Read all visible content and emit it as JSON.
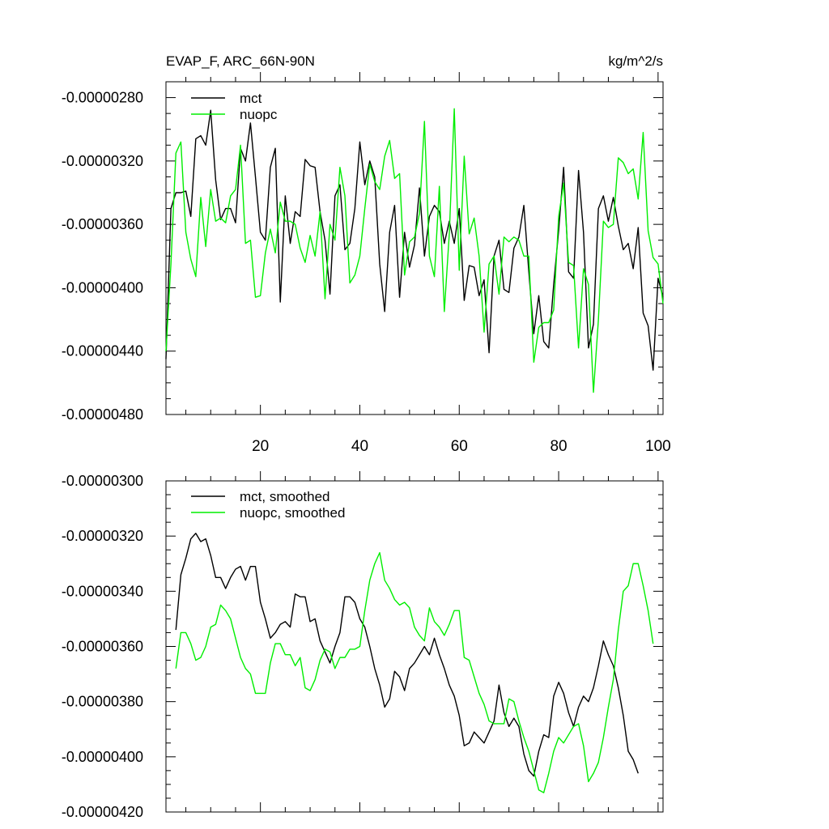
{
  "chart_data": [
    {
      "type": "line",
      "title": "EVAP_F, ARC_66N-90N",
      "units": "kg/m^2/s",
      "xlabel": "",
      "ylabel": "",
      "xlim": [
        1,
        101
      ],
      "ylim": [
        -4.8e-06,
        -2.7e-06
      ],
      "x_ticks": [
        20,
        40,
        60,
        80,
        100
      ],
      "x_tick_labels": [
        "20",
        "40",
        "60",
        "80",
        "100"
      ],
      "y_ticks": [
        -2.8e-06,
        -3.2e-06,
        -3.6e-06,
        -4e-06,
        -4.4e-06,
        -4.8e-06
      ],
      "y_tick_labels": [
        "-0.00000280",
        "-0.00000320",
        "-0.00000360",
        "-0.00000400",
        "-0.00000440",
        "-0.00000480"
      ],
      "legend_position": "top-left",
      "grid": false,
      "series": [
        {
          "name": "mct",
          "color": "#000000",
          "x_start": 1,
          "values": [
            -4.45e-06,
            -3.5e-06,
            -3.4e-06,
            -3.4e-06,
            -3.39e-06,
            -3.55e-06,
            -3.06e-06,
            -3.04e-06,
            -3.1e-06,
            -2.88e-06,
            -3.32e-06,
            -3.57e-06,
            -3.5e-06,
            -3.5e-06,
            -3.59e-06,
            -3.12e-06,
            -3.2e-06,
            -2.96e-06,
            -3.3e-06,
            -3.65e-06,
            -3.7e-06,
            -3.24e-06,
            -3.12e-06,
            -4.09e-06,
            -3.42e-06,
            -3.72e-06,
            -3.52e-06,
            -3.55e-06,
            -3.19e-06,
            -3.23e-06,
            -3.24e-06,
            -3.52e-06,
            -3.7e-06,
            -4.04e-06,
            -3.42e-06,
            -3.35e-06,
            -3.76e-06,
            -3.72e-06,
            -3.5e-06,
            -3.08e-06,
            -3.35e-06,
            -3.2e-06,
            -3.3e-06,
            -3.85e-06,
            -4.15e-06,
            -3.65e-06,
            -3.48e-06,
            -4.06e-06,
            -3.65e-06,
            -3.87e-06,
            -3.73e-06,
            -3.37e-06,
            -3.8e-06,
            -3.55e-06,
            -3.48e-06,
            -3.52e-06,
            -3.72e-06,
            -3.58e-06,
            -3.72e-06,
            -3.5e-06,
            -4.08e-06,
            -3.86e-06,
            -3.87e-06,
            -4.05e-06,
            -3.95e-06,
            -4.41e-06,
            -3.8e-06,
            -3.7e-06,
            -4.01e-06,
            -4.03e-06,
            -3.75e-06,
            -3.68e-06,
            -3.48e-06,
            -3.9e-06,
            -4.29e-06,
            -4.05e-06,
            -4.34e-06,
            -4.38e-06,
            -3.98e-06,
            -3.64e-06,
            -3.24e-06,
            -3.9e-06,
            -3.94e-06,
            -3.26e-06,
            -3.65e-06,
            -4.38e-06,
            -4.23e-06,
            -3.5e-06,
            -3.42e-06,
            -3.58e-06,
            -3.43e-06,
            -3.61e-06,
            -3.76e-06,
            -3.72e-06,
            -3.88e-06,
            -3.62e-06,
            -4.16e-06,
            -4.24e-06,
            -4.52e-06,
            -3.94e-06,
            -4.06e-06
          ]
        },
        {
          "name": "nuopc",
          "color": "#00ee00",
          "x_start": 1,
          "values": [
            -4.4e-06,
            -3.85e-06,
            -3.15e-06,
            -3.08e-06,
            -3.65e-06,
            -3.82e-06,
            -3.93e-06,
            -3.43e-06,
            -3.74e-06,
            -3.38e-06,
            -3.58e-06,
            -3.56e-06,
            -3.59e-06,
            -3.42e-06,
            -3.38e-06,
            -3.1e-06,
            -3.72e-06,
            -3.7e-06,
            -4.06e-06,
            -4.05e-06,
            -3.78e-06,
            -3.63e-06,
            -3.78e-06,
            -3.46e-06,
            -3.58e-06,
            -3.58e-06,
            -3.6e-06,
            -3.75e-06,
            -3.84e-06,
            -3.67e-06,
            -3.8e-06,
            -3.52e-06,
            -4.07e-06,
            -3.6e-06,
            -3.7e-06,
            -3.24e-06,
            -3.42e-06,
            -3.97e-06,
            -3.92e-06,
            -3.8e-06,
            -3.5e-06,
            -3.22e-06,
            -3.33e-06,
            -3.38e-06,
            -3.17e-06,
            -3.07e-06,
            -3.31e-06,
            -3.28e-06,
            -3.92e-06,
            -3.71e-06,
            -3.68e-06,
            -3.53e-06,
            -2.95e-06,
            -3.8e-06,
            -3.93e-06,
            -3.36e-06,
            -4.15e-06,
            -3.66e-06,
            -2.87e-06,
            -3.89e-06,
            -3.17e-06,
            -3.66e-06,
            -3.56e-06,
            -3.8e-06,
            -4.28e-06,
            -3.85e-06,
            -3.8e-06,
            -4.04e-06,
            -3.68e-06,
            -3.71e-06,
            -3.68e-06,
            -3.7e-06,
            -3.8e-06,
            -3.8e-06,
            -4.47e-06,
            -4.25e-06,
            -4.22e-06,
            -4.22e-06,
            -4.14e-06,
            -3.55e-06,
            -3.34e-06,
            -3.84e-06,
            -3.86e-06,
            -4.38e-06,
            -3.88e-06,
            -3.98e-06,
            -4.66e-06,
            -4.2e-06,
            -3.58e-06,
            -3.62e-06,
            -3.6e-06,
            -3.18e-06,
            -3.21e-06,
            -3.28e-06,
            -3.25e-06,
            -3.44e-06,
            -3.02e-06,
            -3.64e-06,
            -3.81e-06,
            -3.85e-06,
            -4.1e-06
          ]
        }
      ]
    },
    {
      "type": "line",
      "title": "",
      "xlabel": "",
      "ylabel": "",
      "xlim": [
        1,
        101
      ],
      "ylim": [
        -4.2e-06,
        -3e-06
      ],
      "x_ticks": [
        20,
        40,
        60,
        80,
        100
      ],
      "x_tick_labels": [],
      "y_ticks": [
        -3e-06,
        -3.2e-06,
        -3.4e-06,
        -3.6e-06,
        -3.8e-06,
        -4e-06,
        -4.2e-06
      ],
      "y_tick_labels": [
        "-0.00000300",
        "-0.00000320",
        "-0.00000340",
        "-0.00000360",
        "-0.00000380",
        "-0.00000400",
        "-0.00000420"
      ],
      "legend_position": "top-left",
      "grid": false,
      "series": [
        {
          "name": "mct, smoothed",
          "color": "#000000",
          "x_start": 3,
          "values": [
            -3.54e-06,
            -3.34e-06,
            -3.28e-06,
            -3.21e-06,
            -3.19e-06,
            -3.22e-06,
            -3.21e-06,
            -3.27e-06,
            -3.35e-06,
            -3.35e-06,
            -3.39e-06,
            -3.35e-06,
            -3.32e-06,
            -3.31e-06,
            -3.36e-06,
            -3.31e-06,
            -3.31e-06,
            -3.44e-06,
            -3.5e-06,
            -3.57e-06,
            -3.55e-06,
            -3.52e-06,
            -3.51e-06,
            -3.53e-06,
            -3.41e-06,
            -3.42e-06,
            -3.42e-06,
            -3.51e-06,
            -3.5e-06,
            -3.58e-06,
            -3.62e-06,
            -3.66e-06,
            -3.6e-06,
            -3.55e-06,
            -3.42e-06,
            -3.42e-06,
            -3.44e-06,
            -3.5e-06,
            -3.53e-06,
            -3.6e-06,
            -3.68e-06,
            -3.74e-06,
            -3.82e-06,
            -3.79e-06,
            -3.69e-06,
            -3.71e-06,
            -3.76e-06,
            -3.68e-06,
            -3.66e-06,
            -3.63e-06,
            -3.6e-06,
            -3.63e-06,
            -3.57e-06,
            -3.63e-06,
            -3.68e-06,
            -3.74e-06,
            -3.78e-06,
            -3.85e-06,
            -3.96e-06,
            -3.95e-06,
            -3.91e-06,
            -3.93e-06,
            -3.95e-06,
            -3.91e-06,
            -3.87e-06,
            -3.74e-06,
            -3.84e-06,
            -3.89e-06,
            -3.86e-06,
            -3.89e-06,
            -3.99e-06,
            -4.05e-06,
            -4.07e-06,
            -3.98e-06,
            -3.92e-06,
            -3.93e-06,
            -3.78e-06,
            -3.73e-06,
            -3.77e-06,
            -3.84e-06,
            -3.89e-06,
            -3.82e-06,
            -3.78e-06,
            -3.8e-06,
            -3.75e-06,
            -3.67e-06,
            -3.58e-06,
            -3.63e-06,
            -3.67e-06,
            -3.75e-06,
            -3.85e-06,
            -3.98e-06,
            -4.01e-06,
            -4.06e-06
          ]
        },
        {
          "name": "nuopc, smoothed",
          "color": "#00ee00",
          "x_start": 3,
          "values": [
            -3.68e-06,
            -3.55e-06,
            -3.55e-06,
            -3.59e-06,
            -3.65e-06,
            -3.64e-06,
            -3.6e-06,
            -3.53e-06,
            -3.52e-06,
            -3.45e-06,
            -3.47e-06,
            -3.5e-06,
            -3.57e-06,
            -3.64e-06,
            -3.68e-06,
            -3.7e-06,
            -3.77e-06,
            -3.77e-06,
            -3.77e-06,
            -3.66e-06,
            -3.59e-06,
            -3.59e-06,
            -3.63e-06,
            -3.63e-06,
            -3.67e-06,
            -3.64e-06,
            -3.75e-06,
            -3.76e-06,
            -3.72e-06,
            -3.65e-06,
            -3.61e-06,
            -3.62e-06,
            -3.68e-06,
            -3.64e-06,
            -3.64e-06,
            -3.61e-06,
            -3.61e-06,
            -3.6e-06,
            -3.47e-06,
            -3.36e-06,
            -3.3e-06,
            -3.26e-06,
            -3.36e-06,
            -3.39e-06,
            -3.43e-06,
            -3.45e-06,
            -3.44e-06,
            -3.46e-06,
            -3.53e-06,
            -3.56e-06,
            -3.58e-06,
            -3.46e-06,
            -3.51e-06,
            -3.53e-06,
            -3.56e-06,
            -3.52e-06,
            -3.47e-06,
            -3.47e-06,
            -3.64e-06,
            -3.65e-06,
            -3.71e-06,
            -3.77e-06,
            -3.81e-06,
            -3.87e-06,
            -3.88e-06,
            -3.88e-06,
            -3.88e-06,
            -3.79e-06,
            -3.8e-06,
            -3.87e-06,
            -3.93e-06,
            -3.98e-06,
            -4.05e-06,
            -4.12e-06,
            -4.13e-06,
            -4.06e-06,
            -3.98e-06,
            -3.93e-06,
            -3.95e-06,
            -3.92e-06,
            -3.89e-06,
            -3.88e-06,
            -3.96e-06,
            -4.09e-06,
            -4.06e-06,
            -4.02e-06,
            -3.93e-06,
            -3.82e-06,
            -3.72e-06,
            -3.54e-06,
            -3.4e-06,
            -3.38e-06,
            -3.3e-06,
            -3.3e-06,
            -3.38e-06,
            -3.47e-06,
            -3.59e-06
          ]
        }
      ]
    }
  ]
}
